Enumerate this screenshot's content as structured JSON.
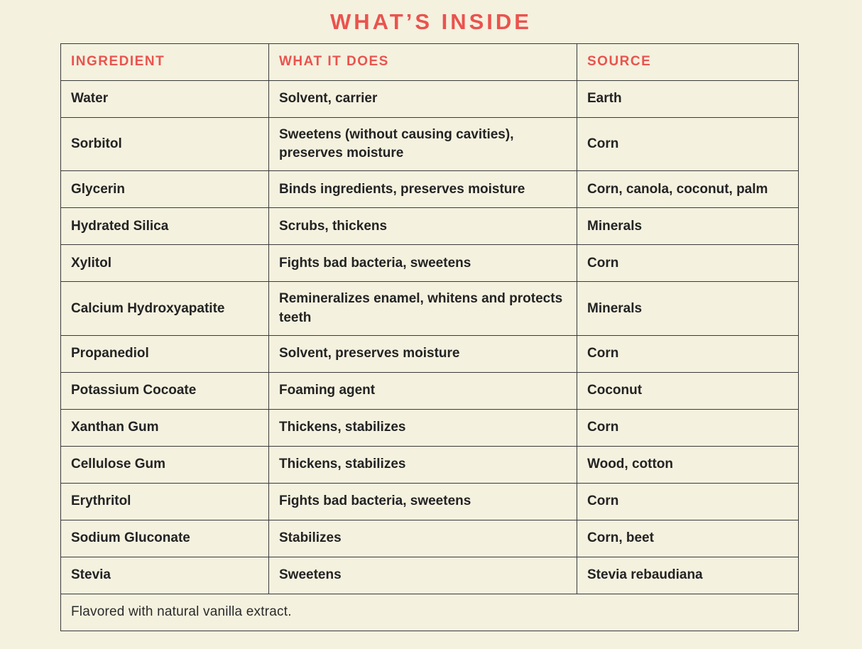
{
  "page": {
    "title": "WHAT’S INSIDE",
    "background_color": "#f4f1df",
    "accent_color": "#ea534e",
    "text_color": "#232323",
    "border_color": "#3a3a3a"
  },
  "table": {
    "headers": [
      "INGREDIENT",
      "WHAT IT DOES",
      "SOURCE"
    ],
    "rows": [
      [
        "Water",
        "Solvent, carrier",
        "Earth"
      ],
      [
        "Sorbitol",
        "Sweetens (without causing cavities), preserves moisture",
        "Corn"
      ],
      [
        "Glycerin",
        "Binds ingredients, preserves moisture",
        "Corn, canola, coconut, palm"
      ],
      [
        "Hydrated Silica",
        "Scrubs, thickens",
        "Minerals"
      ],
      [
        "Xylitol",
        "Fights bad bacteria, sweetens",
        "Corn"
      ],
      [
        "Calcium Hydroxyapatite",
        "Remineralizes enamel, whitens and protects teeth",
        "Minerals"
      ],
      [
        "Propanediol",
        "Solvent, preserves moisture",
        "Corn"
      ],
      [
        "Potassium Cocoate",
        "Foaming agent",
        "Coconut"
      ],
      [
        "Xanthan Gum",
        "Thickens, stabilizes",
        "Corn"
      ],
      [
        "Cellulose Gum",
        "Thickens, stabilizes",
        "Wood, cotton"
      ],
      [
        "Erythritol",
        "Fights bad bacteria, sweetens",
        "Corn"
      ],
      [
        "Sodium Gluconate",
        "Stabilizes",
        "Corn, beet"
      ],
      [
        "Stevia",
        "Sweetens",
        "Stevia rebaudiana"
      ]
    ],
    "footer_note": "Flavored with natural vanilla extract."
  }
}
